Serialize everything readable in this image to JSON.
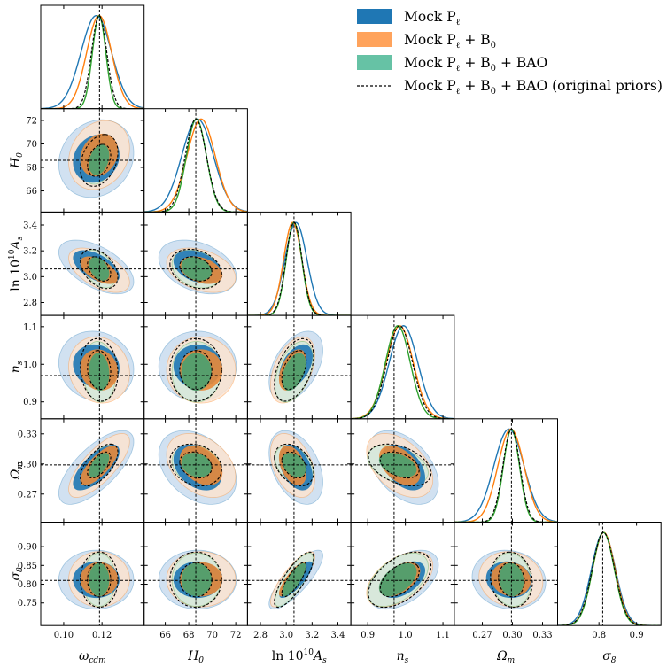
{
  "chart_data": {
    "type": "corner",
    "title": "",
    "params": [
      {
        "key": "omega_cdm",
        "label": "ω",
        "sub": "cdm",
        "sup": "",
        "pre": "",
        "range": [
          0.088,
          0.142
        ],
        "ticks": [
          "0.10",
          "0.12"
        ],
        "tickvals": [
          0.1,
          0.12
        ],
        "truth": 0.1187
      },
      {
        "key": "H0",
        "label": "H",
        "sub": "0",
        "sup": "",
        "pre": "",
        "range": [
          64.2,
          73.0
        ],
        "ticks": [
          "66",
          "68",
          "70",
          "72"
        ],
        "tickvals": [
          66,
          68,
          70,
          72
        ],
        "truth": 68.6
      },
      {
        "key": "lnAs",
        "label": "A",
        "sub": "s",
        "sup": "10",
        "pre": "ln 10",
        "range": [
          2.7,
          3.5
        ],
        "ticks": [
          "2.8",
          "3.0",
          "3.2",
          "3.4"
        ],
        "tickvals": [
          2.8,
          3.0,
          3.2,
          3.4
        ],
        "truth": 3.06
      },
      {
        "key": "ns",
        "label": "n",
        "sub": "s",
        "sup": "",
        "pre": "",
        "range": [
          0.855,
          1.13
        ],
        "ticks": [
          "0.9",
          "1.0",
          "1.1"
        ],
        "tickvals": [
          0.9,
          1.0,
          1.1
        ],
        "truth": 0.97
      },
      {
        "key": "Omega_m",
        "label": "Ω",
        "sub": "m",
        "sup": "",
        "pre": "",
        "range": [
          0.242,
          0.345
        ],
        "ticks": [
          "0.27",
          "0.30",
          "0.33"
        ],
        "tickvals": [
          0.27,
          0.3,
          0.33
        ],
        "truth": 0.299
      },
      {
        "key": "sigma8",
        "label": "σ",
        "sub": "8",
        "sup": "",
        "pre": "",
        "range": [
          0.69,
          0.965
        ],
        "ticks": [
          "0.75",
          "0.80",
          "0.85",
          "0.90"
        ],
        "tickvals": [
          0.75,
          0.8,
          0.85,
          0.9
        ],
        "truth": 0.81
      }
    ],
    "bottom_ticks": [
      {
        "ticks": [
          "0.10",
          "0.12"
        ],
        "tickvals": [
          0.1,
          0.12
        ]
      },
      {
        "ticks": [
          "66",
          "68",
          "70",
          "72"
        ],
        "tickvals": [
          66,
          68,
          70,
          72
        ]
      },
      {
        "ticks": [
          "2.8",
          "3.0",
          "3.2",
          "3.4"
        ],
        "tickvals": [
          2.8,
          3.0,
          3.2,
          3.4
        ]
      },
      {
        "ticks": [
          "0.9",
          "1.0",
          "1.1"
        ],
        "tickvals": [
          0.9,
          1.0,
          1.1
        ]
      },
      {
        "ticks": [
          "0.27",
          "0.30",
          "0.33"
        ],
        "tickvals": [
          0.27,
          0.3,
          0.33
        ]
      },
      {
        "ticks": [
          "0.8",
          "0.9"
        ],
        "tickvals": [
          0.8,
          0.9
        ]
      }
    ],
    "series": [
      {
        "name": "Mock P_ℓ",
        "legend": {
          "main": "Mock P",
          "sub": "ℓ",
          "rest": ""
        },
        "color": "#1f77b4",
        "light": "#c9dcef",
        "dark": "#1f77b4",
        "means": [
          0.117,
          68.75,
          3.075,
          0.995,
          0.2965,
          0.812
        ],
        "sigmas": [
          0.008,
          1.35,
          0.085,
          0.038,
          0.015,
          0.032
        ],
        "corr": {
          "0-1": 0.15,
          "0-2": -0.55,
          "0-3": -0.1,
          "0-4": 0.7,
          "0-5": 0.0,
          "1-2": -0.35,
          "1-3": 0.0,
          "1-4": -0.35,
          "1-5": 0.0,
          "2-3": 0.45,
          "2-4": -0.4,
          "2-5": 0.82,
          "3-4": -0.45,
          "3-5": 0.5,
          "4-5": -0.1
        }
      },
      {
        "name": "Mock P_ℓ + B_0",
        "legend": {
          "main": "Mock P",
          "sub": "ℓ",
          "rest": " + B",
          "sub2": "0"
        },
        "color": "#ff7f0e",
        "light": "#fbe3d0",
        "dark": "#e8883a",
        "means": [
          0.1185,
          69.05,
          3.05,
          0.985,
          0.2985,
          0.813
        ],
        "sigmas": [
          0.0065,
          1.2,
          0.07,
          0.036,
          0.013,
          0.03
        ],
        "corr": {
          "0-1": 0.2,
          "0-2": -0.55,
          "0-3": -0.1,
          "0-4": 0.75,
          "0-5": 0.0,
          "1-2": -0.35,
          "1-3": 0.0,
          "1-4": -0.35,
          "1-5": 0.0,
          "2-3": 0.45,
          "2-4": -0.4,
          "2-5": 0.82,
          "3-4": -0.45,
          "3-5": 0.5,
          "4-5": -0.1
        }
      },
      {
        "name": "Mock P_ℓ + B_0 + BAO",
        "legend": {
          "main": "Mock P",
          "sub": "ℓ",
          "rest": " + B",
          "sub2": "0",
          "rest2": " + BAO"
        },
        "color": "#2ca02c",
        "light": "#d2e9dc",
        "dark": "#4f9f6f",
        "means": [
          0.1185,
          68.65,
          3.06,
          0.98,
          0.299,
          0.812
        ],
        "sigmas": [
          0.0035,
          0.85,
          0.06,
          0.033,
          0.008,
          0.029
        ],
        "corr": {
          "0-1": 0.3,
          "0-2": -0.4,
          "0-3": -0.1,
          "0-4": 0.6,
          "0-5": 0.0,
          "1-2": -0.25,
          "1-3": 0.0,
          "1-4": -0.2,
          "1-5": 0.0,
          "2-3": 0.45,
          "2-4": -0.35,
          "2-5": 0.8,
          "3-4": -0.4,
          "3-5": 0.5,
          "4-5": -0.1
        }
      },
      {
        "name": "Mock P_ℓ + B_0 + BAO (original priors)",
        "legend": {
          "main": "Mock P",
          "sub": "ℓ",
          "rest": " + B",
          "sub2": "0",
          "rest2": " + BAO (original priors)"
        },
        "color": "#000000",
        "style": "dashed",
        "means": [
          0.1185,
          68.6,
          3.06,
          0.985,
          0.299,
          0.812
        ],
        "sigmas": [
          0.004,
          0.9,
          0.062,
          0.034,
          0.0085,
          0.03
        ],
        "corr": {
          "0-1": 0.3,
          "0-2": -0.4,
          "0-3": -0.1,
          "0-4": 0.6,
          "0-5": 0.0,
          "1-2": -0.25,
          "1-3": 0.0,
          "1-4": -0.2,
          "1-5": 0.0,
          "2-3": 0.45,
          "2-4": -0.35,
          "2-5": 0.8,
          "3-4": -0.4,
          "3-5": 0.5,
          "4-5": -0.1
        }
      }
    ],
    "legend_position": "top-right",
    "truth_lines": true
  }
}
